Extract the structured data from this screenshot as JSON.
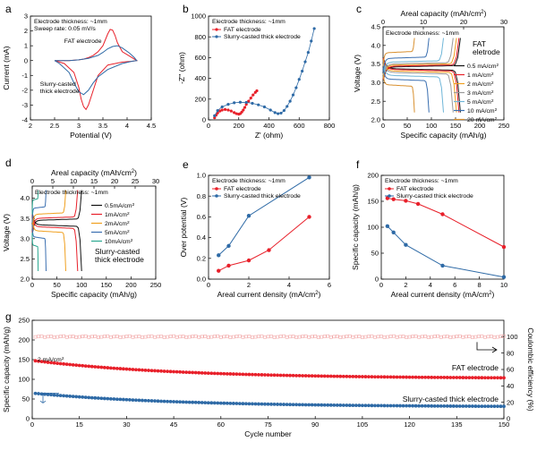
{
  "chart_data": [
    {
      "id": "a",
      "type": "line",
      "panel_label": "a",
      "xlabel": "Potential (V)",
      "ylabel": "Current (mA)",
      "xlim": [
        2.0,
        4.5
      ],
      "ylim": [
        -4,
        3
      ],
      "xticks": [
        2.0,
        2.5,
        3.0,
        3.5,
        4.0,
        4.5
      ],
      "yticks": [
        -4,
        -3,
        -2,
        -1,
        0,
        1,
        2,
        3
      ],
      "notes": [
        "Electrode thickness: ~1mm",
        "Sweep rate: 0.05 mV/s"
      ],
      "series": [
        {
          "name": "FAT electrode",
          "color": "#e8202a",
          "x": [
            2.5,
            2.8,
            3.0,
            3.1,
            3.2,
            3.3,
            3.4,
            3.5,
            3.55,
            3.6,
            3.65,
            3.7,
            3.75,
            3.8,
            3.9,
            4.05,
            4.15,
            4.2,
            4.1,
            3.9,
            3.6,
            3.4,
            3.3,
            3.2,
            3.15,
            3.1,
            3.05,
            3.0,
            2.9,
            2.7,
            2.5
          ],
          "y": [
            0,
            0,
            0.05,
            0.1,
            0.2,
            0.35,
            0.6,
            1.0,
            1.4,
            1.8,
            2.1,
            2.05,
            1.7,
            1.2,
            0.6,
            0.3,
            0.1,
            0,
            -0.05,
            -0.1,
            -0.3,
            -1.0,
            -2.0,
            -3.0,
            -3.3,
            -3.1,
            -2.6,
            -1.8,
            -0.8,
            -0.2,
            0
          ]
        },
        {
          "name": "Slurry-casted thick electrode",
          "color": "#2e6aa6",
          "x": [
            2.5,
            2.8,
            3.0,
            3.2,
            3.4,
            3.5,
            3.6,
            3.7,
            3.8,
            3.9,
            4.05,
            4.15,
            4.2,
            4.1,
            3.9,
            3.6,
            3.4,
            3.3,
            3.2,
            3.1,
            3.0,
            2.9,
            2.8,
            2.6,
            2.5
          ],
          "y": [
            0,
            0,
            0.05,
            0.15,
            0.35,
            0.55,
            0.8,
            0.95,
            1.0,
            0.85,
            0.5,
            0.2,
            0,
            -0.05,
            -0.2,
            -0.6,
            -1.1,
            -1.5,
            -2.0,
            -2.3,
            -2.1,
            -1.5,
            -0.8,
            -0.2,
            0
          ]
        }
      ],
      "annotations": [
        {
          "text": "FAT electrode",
          "color": "#e8202a"
        },
        {
          "text": "Slurry-casted",
          "color": "#2e6aa6"
        },
        {
          "text": "thick electrode",
          "color": "#2e6aa6"
        }
      ]
    },
    {
      "id": "b",
      "type": "scatter",
      "panel_label": "b",
      "xlabel": "Z' (ohm)",
      "ylabel": "-Z'' (ohm)",
      "xlim": [
        0,
        800
      ],
      "ylim": [
        0,
        1000
      ],
      "xticks": [
        0,
        200,
        400,
        600,
        800
      ],
      "yticks": [
        0,
        200,
        400,
        600,
        800,
        1000
      ],
      "notes": [
        "Electrode thickness: ~1mm"
      ],
      "series": [
        {
          "name": "FAT electrode",
          "color": "#e8202a",
          "x": [
            40,
            50,
            60,
            75,
            90,
            110,
            130,
            150,
            170,
            185,
            200,
            210,
            220,
            230,
            240,
            250,
            265,
            280,
            295,
            310,
            320
          ],
          "y": [
            20,
            45,
            65,
            85,
            95,
            100,
            95,
            85,
            70,
            60,
            55,
            60,
            75,
            95,
            120,
            150,
            180,
            210,
            240,
            265,
            280
          ]
        },
        {
          "name": "Slurry-casted thick electrode",
          "color": "#2e6aa6",
          "x": [
            40,
            60,
            90,
            130,
            170,
            210,
            250,
            290,
            330,
            370,
            410,
            440,
            460,
            480,
            500,
            520,
            540,
            560,
            580,
            600,
            620,
            640,
            660,
            680,
            700
          ],
          "y": [
            40,
            90,
            125,
            150,
            165,
            170,
            168,
            160,
            145,
            125,
            95,
            70,
            60,
            65,
            90,
            130,
            180,
            240,
            310,
            390,
            470,
            560,
            650,
            760,
            880
          ]
        }
      ]
    },
    {
      "id": "c",
      "type": "line",
      "panel_label": "c",
      "xlabel": "Specific capacity (mAh/g)",
      "ylabel": "Voltage (V)",
      "x2label": "Areal capacity (mAh/cm2)",
      "xlim": [
        0,
        250
      ],
      "ylim": [
        2.0,
        4.5
      ],
      "x2lim": [
        0,
        30
      ],
      "xticks": [
        0,
        50,
        100,
        150,
        200,
        250
      ],
      "x2ticks": [
        0,
        10,
        20,
        30
      ],
      "yticks": [
        2.0,
        2.5,
        3.0,
        3.5,
        4.0,
        4.5
      ],
      "notes": [
        "Electrode thickness: ~1mm"
      ],
      "title_label": [
        "FAT",
        "eletrode"
      ],
      "series": [
        {
          "name": "0.5 mA/cm2",
          "color": "#111111",
          "capacity": 160,
          "vcharge": 3.42,
          "vdischarge": 3.38
        },
        {
          "name": "1 mA/cm2",
          "color": "#e8202a",
          "capacity": 157,
          "vcharge": 3.44,
          "vdischarge": 3.36
        },
        {
          "name": "2 mA/cm2",
          "color": "#f0a020",
          "capacity": 152,
          "vcharge": 3.47,
          "vdischarge": 3.32
        },
        {
          "name": "3 mA/cm2",
          "color": "#9a9a9a",
          "capacity": 145,
          "vcharge": 3.5,
          "vdischarge": 3.28
        },
        {
          "name": "5 mA/cm2",
          "color": "#6fb6d8",
          "capacity": 125,
          "vcharge": 3.55,
          "vdischarge": 3.2
        },
        {
          "name": "10 mA/cm2",
          "color": "#3a6fb0",
          "capacity": 95,
          "vcharge": 3.65,
          "vdischarge": 3.1
        },
        {
          "name": "20 mA/cm2",
          "color": "#d89030",
          "capacity": 65,
          "vcharge": 3.8,
          "vdischarge": 2.95
        }
      ]
    },
    {
      "id": "d",
      "type": "line",
      "panel_label": "d",
      "xlabel": "Specific capacity (mAh/g)",
      "ylabel": "Voltage (V)",
      "x2label": "Areal capacity (mAh/cm2)",
      "xlim": [
        0,
        250
      ],
      "ylim": [
        2.0,
        4.3
      ],
      "x2lim": [
        0,
        30
      ],
      "xticks": [
        0,
        50,
        100,
        150,
        200,
        250
      ],
      "x2ticks": [
        0,
        5,
        10,
        15,
        20,
        25,
        30
      ],
      "yticks": [
        2.0,
        2.5,
        3.0,
        3.5,
        4.0
      ],
      "notes": [
        "Electrode thickness: ~1mm"
      ],
      "title_label": [
        "Slurry-casted",
        "thick electrode"
      ],
      "series": [
        {
          "name": "0.5mA/cm2",
          "color": "#111111",
          "capacity": 100,
          "vcharge": 3.45,
          "vdischarge": 3.35
        },
        {
          "name": "1mA/cm2",
          "color": "#e8202a",
          "capacity": 92,
          "vcharge": 3.5,
          "vdischarge": 3.3
        },
        {
          "name": "2mA/cm2",
          "color": "#f0a020",
          "capacity": 68,
          "vcharge": 3.6,
          "vdischarge": 3.2
        },
        {
          "name": "5mA/cm2",
          "color": "#3a6fb0",
          "capacity": 28,
          "vcharge": 3.75,
          "vdischarge": 3.05
        },
        {
          "name": "10mA/cm2",
          "color": "#2aa890",
          "capacity": 12,
          "vcharge": 3.95,
          "vdischarge": 2.85
        }
      ]
    },
    {
      "id": "e",
      "type": "line",
      "panel_label": "e",
      "xlabel": "Areal current density (mA/cm2)",
      "ylabel": "Over potential (V)",
      "xlim": [
        0,
        6
      ],
      "ylim": [
        0.0,
        1.0
      ],
      "xticks": [
        0,
        2,
        4,
        6
      ],
      "yticks": [
        0.0,
        0.2,
        0.4,
        0.6,
        0.8,
        1.0
      ],
      "notes": [
        "Electrode thickness: ~1mm"
      ],
      "series": [
        {
          "name": "FAT electrode",
          "color": "#e8202a",
          "x": [
            0.5,
            1,
            2,
            3,
            5
          ],
          "y": [
            0.08,
            0.13,
            0.18,
            0.28,
            0.6
          ]
        },
        {
          "name": "Slurry-casted thick electrode",
          "color": "#2e6aa6",
          "x": [
            0.5,
            1,
            2,
            5
          ],
          "y": [
            0.23,
            0.32,
            0.61,
            0.98
          ]
        }
      ]
    },
    {
      "id": "f",
      "type": "line",
      "panel_label": "f",
      "xlabel": "Areal current  density (mA/cm2)",
      "ylabel": "Specific capacity (mAh/g)",
      "xlim": [
        0,
        10
      ],
      "ylim": [
        0,
        200
      ],
      "xticks": [
        0,
        2,
        4,
        6,
        8,
        10
      ],
      "yticks": [
        0,
        50,
        100,
        150,
        200
      ],
      "notes": [
        "Electrode thickness: ~1mm"
      ],
      "series": [
        {
          "name": "FAT electrode",
          "color": "#e8202a",
          "x": [
            0.5,
            1,
            2,
            3,
            5,
            10
          ],
          "y": [
            156,
            154,
            151,
            145,
            125,
            62
          ]
        },
        {
          "name": "Slurry-casted thick electrode",
          "color": "#2e6aa6",
          "x": [
            0.5,
            1,
            2,
            5,
            10
          ],
          "y": [
            102,
            90,
            66,
            26,
            4
          ]
        }
      ]
    },
    {
      "id": "g",
      "type": "scatter",
      "panel_label": "g",
      "xlabel": "Cycle number",
      "ylabel": "Specific capacity (mAh/g)",
      "y2label": "Coulombic efficiency (%)",
      "xlim": [
        0,
        150
      ],
      "ylim": [
        0,
        250
      ],
      "y2lim": [
        0,
        120
      ],
      "xticks": [
        0,
        15,
        30,
        45,
        60,
        75,
        90,
        105,
        120,
        135,
        150
      ],
      "yticks": [
        0,
        50,
        100,
        150,
        200,
        250
      ],
      "y2ticks": [
        0,
        20,
        40,
        60,
        80,
        100
      ],
      "note": "2 mA/cm2",
      "series": [
        {
          "name": "FAT electrode",
          "color": "#e8202a",
          "start": 148,
          "mid": 118,
          "end": 102
        },
        {
          "name": "Slurry-casted thick electrode",
          "color": "#2e6aa6",
          "start": 65,
          "mid": 45,
          "end": 30
        },
        {
          "name": "Coulombic efficiency",
          "color": "#f2a9a9",
          "value": 100
        }
      ]
    }
  ]
}
